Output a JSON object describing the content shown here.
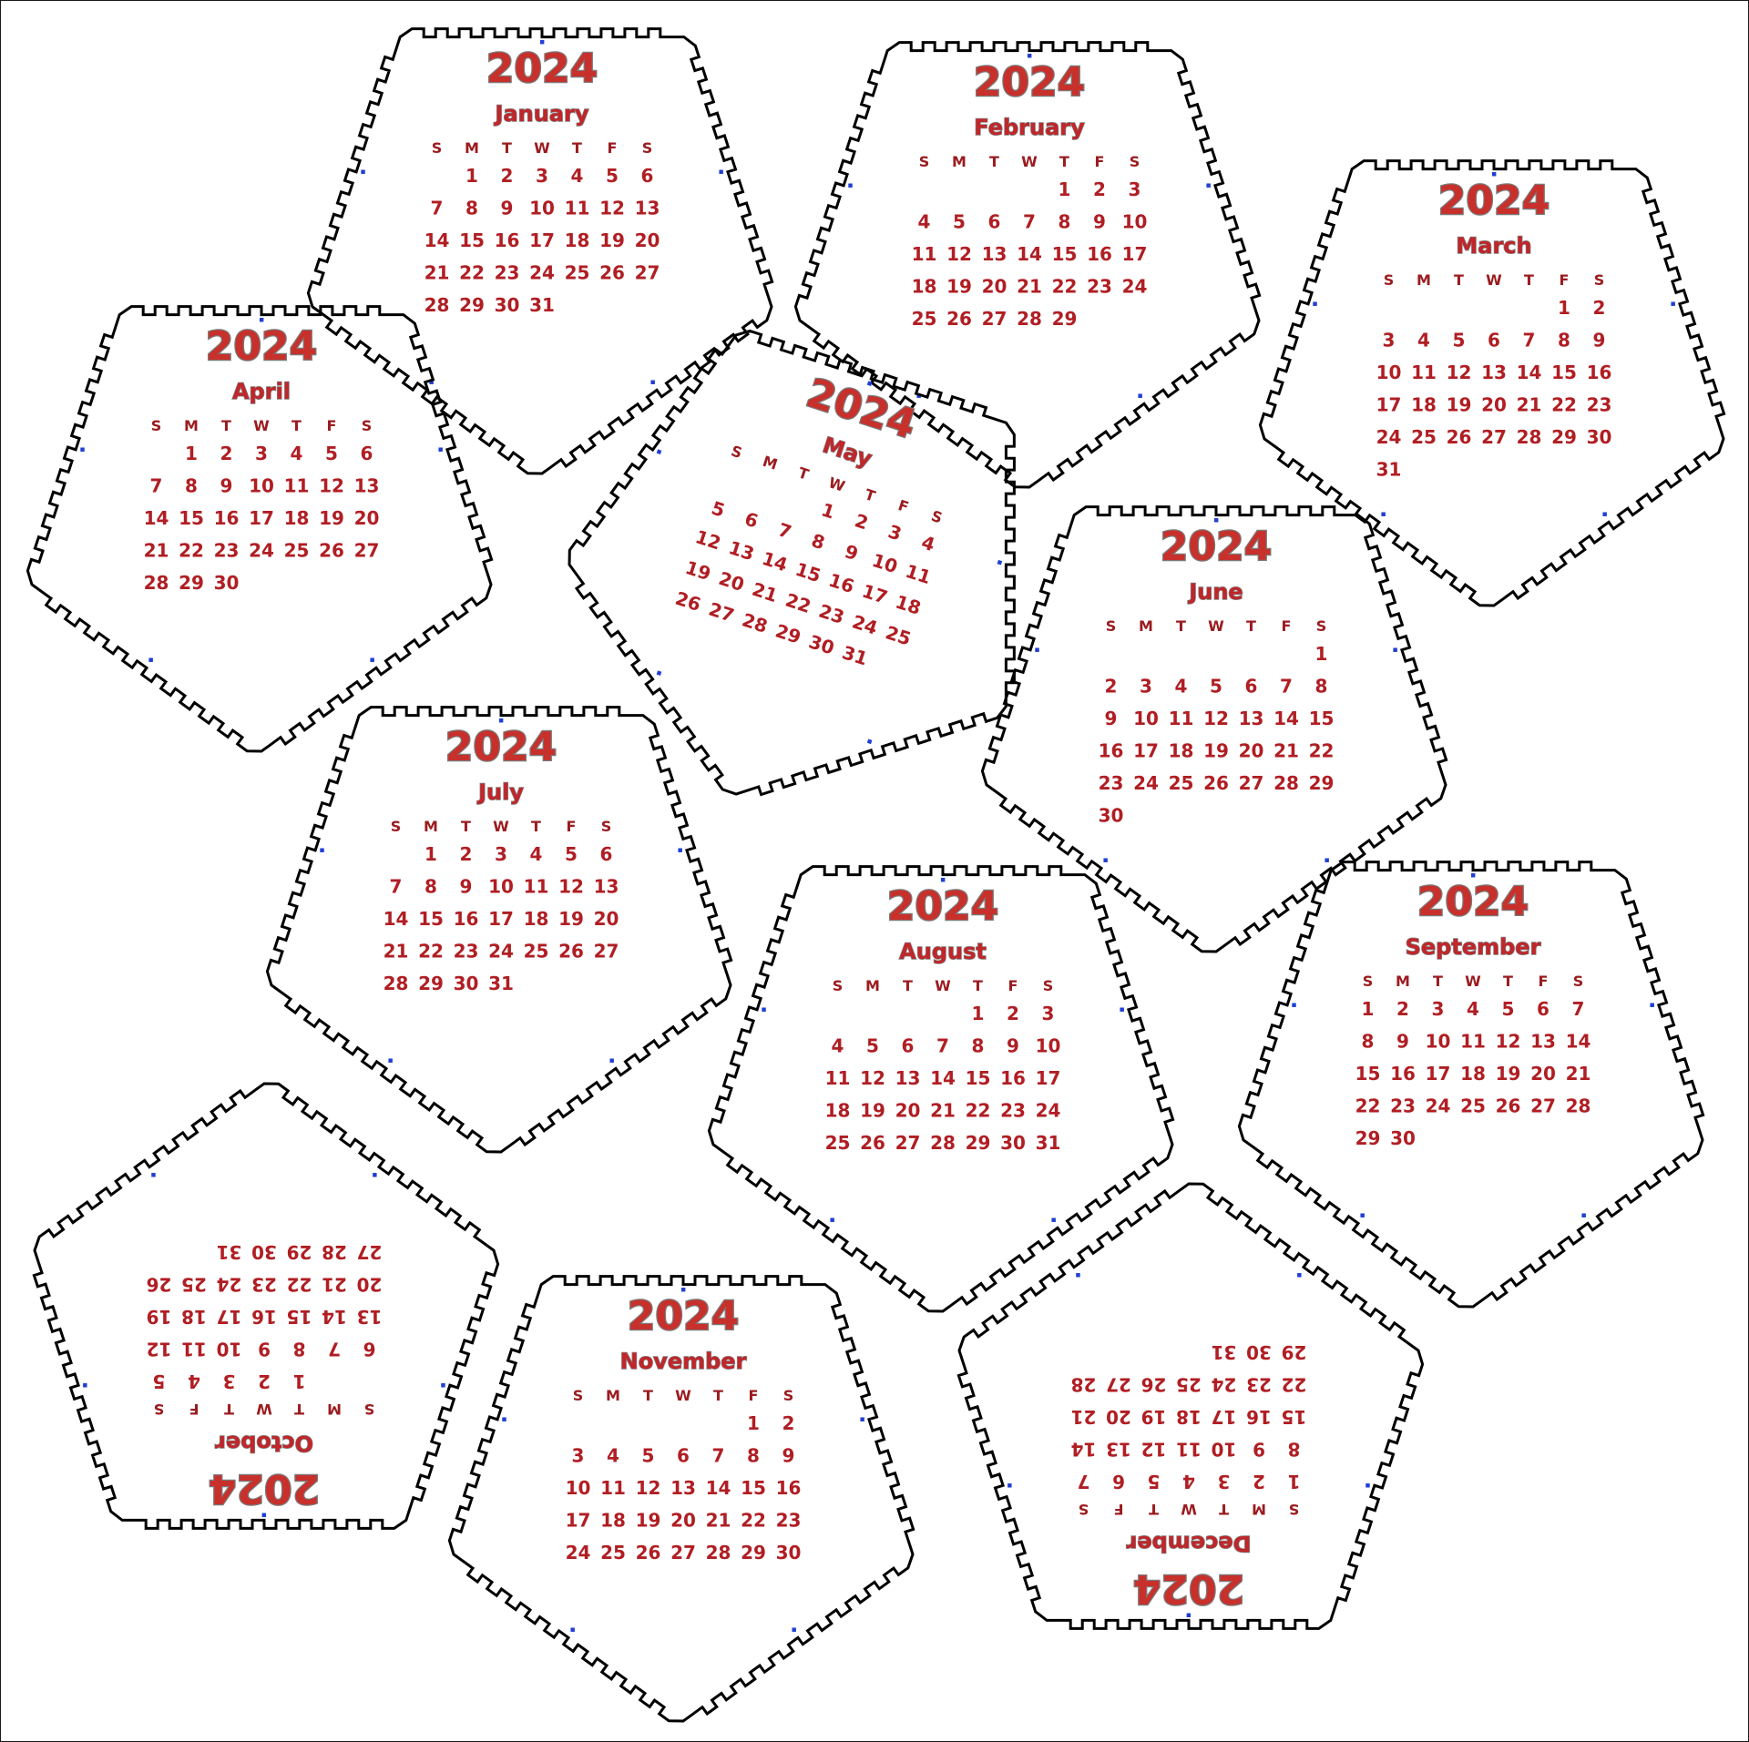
{
  "year": "2024",
  "weekday_labels": [
    "S",
    "M",
    "T",
    "W",
    "T",
    "F",
    "S"
  ],
  "colors": {
    "text": "#b01e23",
    "outline": "#000000",
    "tab_marks": "#1f3fd6"
  },
  "months": [
    {
      "name": "January",
      "start_weekday": 1,
      "days": 31
    },
    {
      "name": "February",
      "start_weekday": 4,
      "days": 29
    },
    {
      "name": "March",
      "start_weekday": 5,
      "days": 31
    },
    {
      "name": "April",
      "start_weekday": 1,
      "days": 30
    },
    {
      "name": "May",
      "start_weekday": 3,
      "days": 31
    },
    {
      "name": "June",
      "start_weekday": 6,
      "days": 30
    },
    {
      "name": "July",
      "start_weekday": 1,
      "days": 31
    },
    {
      "name": "August",
      "start_weekday": 4,
      "days": 31
    },
    {
      "name": "September",
      "start_weekday": 0,
      "days": 30
    },
    {
      "name": "October",
      "start_weekday": 2,
      "days": 31
    },
    {
      "name": "November",
      "start_weekday": 5,
      "days": 30
    },
    {
      "name": "December",
      "start_weekday": 0,
      "days": 31
    }
  ]
}
